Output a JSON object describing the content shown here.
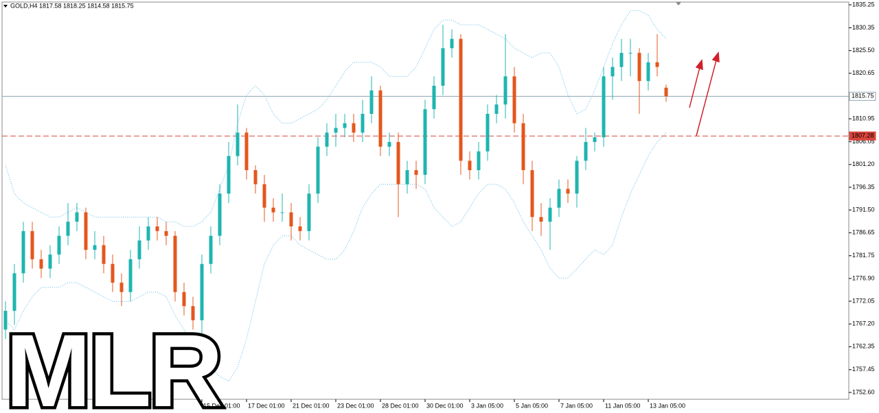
{
  "chart_data": {
    "type": "candlestick",
    "header": "GOLD,H4  1817.58 1818.25 1814.58 1815.75",
    "watermark": "MLR",
    "categories": [
      null,
      null,
      null,
      null,
      null,
      null,
      null,
      null,
      null,
      null,
      null,
      null,
      null,
      null,
      null,
      null,
      null,
      null,
      null,
      null,
      null,
      null,
      "15 Dec 01:00",
      null,
      null,
      null,
      null,
      "17 Dec 01:00",
      null,
      null,
      null,
      null,
      "21 Dec 01:00",
      null,
      null,
      null,
      null,
      "23 Dec 01:00",
      null,
      null,
      null,
      null,
      "28 Dec 01:00",
      null,
      null,
      null,
      null,
      "30 Dec 01:00",
      null,
      null,
      null,
      null,
      "3 Jan 05:00",
      null,
      null,
      null,
      null,
      "5 Jan 05:00",
      null,
      null,
      null,
      null,
      "7 Jan 05:00",
      null,
      null,
      null,
      null,
      "11 Jan 05:00",
      null,
      null,
      null,
      null,
      "13 Jan 05:00",
      null,
      null
    ],
    "open": [
      1766,
      1770,
      1778,
      1787,
      1781,
      1779,
      1782,
      1786,
      1789,
      1791,
      1783,
      1784,
      1780,
      1776,
      1774,
      1781,
      1785,
      1788,
      1787,
      1786,
      1774,
      1771,
      1768,
      1780,
      1786,
      1795,
      1803,
      1808,
      1800,
      1797,
      1792,
      1791,
      1791,
      1788,
      1787,
      1795,
      1805,
      1808,
      1809,
      1810,
      1808,
      1812,
      1817,
      1805,
      1806,
      1797,
      1800,
      1799,
      1813,
      1818,
      1826,
      1828,
      1802,
      1800,
      1804,
      1812,
      1814,
      1820,
      1810,
      1800,
      1790,
      1789,
      1792,
      1796,
      1795,
      1802,
      1806,
      1807,
      1820,
      1822,
      1825,
      1825,
      1819,
      1823,
      1817.58
    ],
    "high": [
      1772,
      1780,
      1789,
      1789,
      1783,
      1784,
      1788,
      1793,
      1793,
      1792,
      1787,
      1786,
      1782,
      1778,
      1783,
      1788,
      1790,
      1790,
      1789,
      1787,
      1776,
      1773,
      1782,
      1788,
      1797,
      1806,
      1814,
      1809,
      1801,
      1799,
      1794,
      1795,
      1793,
      1790,
      1797,
      1807,
      1810,
      1812,
      1812,
      1812,
      1815,
      1820,
      1818,
      1808,
      1808,
      1802,
      1802,
      1815,
      1820,
      1831,
      1830,
      1829,
      1804,
      1806,
      1814,
      1816,
      1829,
      1822,
      1812,
      1802,
      1793,
      1794,
      1798,
      1798,
      1803,
      1809,
      1808,
      1822,
      1824,
      1828,
      1828,
      1826,
      1825,
      1829,
      1818.25
    ],
    "low": [
      1764,
      1767,
      1776,
      1779,
      1777,
      1777,
      1780,
      1784,
      1787,
      1781,
      1781,
      1778,
      1774,
      1771,
      1772,
      1779,
      1783,
      1785,
      1784,
      1772,
      1769,
      1766,
      1753,
      1778,
      1784,
      1793,
      1801,
      1798,
      1795,
      1789,
      1789,
      1789,
      1785,
      1785,
      1785,
      1793,
      1803,
      1805,
      1807,
      1806,
      1806,
      1810,
      1803,
      1803,
      1790,
      1795,
      1796,
      1797,
      1811,
      1816,
      1824,
      1799,
      1798,
      1798,
      1802,
      1810,
      1811,
      1808,
      1797,
      1787,
      1786,
      1783,
      1790,
      1793,
      1792,
      1800,
      1804,
      1805,
      1815,
      1819,
      1820,
      1812,
      1817,
      1820,
      1814.58
    ],
    "close": [
      1770,
      1778,
      1787,
      1781,
      1779,
      1782,
      1786,
      1789,
      1791,
      1783,
      1784,
      1780,
      1776,
      1774,
      1781,
      1785,
      1788,
      1787,
      1786,
      1774,
      1771,
      1768,
      1780,
      1786,
      1795,
      1803,
      1808,
      1800,
      1797,
      1792,
      1791,
      1791,
      1788,
      1787,
      1795,
      1805,
      1808,
      1809,
      1810,
      1808,
      1812,
      1817,
      1805,
      1806,
      1797,
      1800,
      1799,
      1813,
      1818,
      1826,
      1828,
      1802,
      1800,
      1804,
      1812,
      1814,
      1820,
      1810,
      1800,
      1790,
      1789,
      1792,
      1796,
      1795,
      1802,
      1806,
      1807,
      1820,
      1822,
      1825,
      1825,
      1819,
      1823,
      1822,
      1815.75
    ],
    "up_color": "#1fb5b0",
    "down_color": "#e4571e",
    "bands": {
      "color": "#58b8e6",
      "upper": [
        1801,
        1795,
        1793,
        1792,
        1791,
        1790,
        1790,
        1791,
        1792,
        1791,
        1790,
        1790,
        1790,
        1790,
        1790,
        1790,
        1790,
        1790,
        1789,
        1789,
        1788,
        1788,
        1789,
        1791,
        1796,
        1801,
        1810,
        1816,
        1818,
        1816,
        1812,
        1810,
        1810,
        1811,
        1812,
        1813,
        1815,
        1818,
        1821,
        1823,
        1823,
        1823,
        1822,
        1820,
        1820,
        1820,
        1822,
        1826,
        1830,
        1832,
        1832,
        1831,
        1831,
        1831,
        1830,
        1829,
        1828,
        1826,
        1825,
        1824,
        1825,
        1825,
        1822,
        1816,
        1812,
        1813,
        1817,
        1822,
        1827,
        1831,
        1834,
        1834,
        1833,
        1830,
        1828
      ],
      "lower": [
        1768,
        1766,
        1770,
        1773,
        1775,
        1775,
        1775,
        1776,
        1776,
        1775,
        1774,
        1773,
        1772,
        1772,
        1772,
        1773,
        1774,
        1774,
        1773,
        1769,
        1766,
        1763,
        1761,
        1758,
        1756,
        1755,
        1758,
        1764,
        1772,
        1780,
        1784,
        1786,
        1786,
        1784,
        1783,
        1782,
        1781,
        1781,
        1783,
        1787,
        1792,
        1795,
        1797,
        1797,
        1797,
        1797,
        1797,
        1796,
        1792,
        1790,
        1788,
        1789,
        1792,
        1795,
        1797,
        1797,
        1796,
        1793,
        1789,
        1786,
        1783,
        1779,
        1777,
        1777,
        1779,
        1781,
        1783,
        1782,
        1784,
        1790,
        1795,
        1799,
        1803,
        1806,
        1808
      ]
    },
    "price_line": {
      "value": 1815.75,
      "color": "#8aa4b4"
    },
    "level_line": {
      "value": 1807.28,
      "color": "#d9443a"
    },
    "ylim": [
      1751.14,
      1835.84
    ],
    "yticks": [
      1835.25,
      1830.35,
      {
        "value": 1825.5,
        "label": "1825.50"
      },
      1820.65,
      1810.95,
      1806.05,
      {
        "value": 1801.2,
        "label": "1801.20"
      },
      1796.35,
      {
        "value": 1791.5,
        "label": "1791.50"
      },
      1786.65,
      1781.75,
      {
        "value": 1776.9,
        "label": "1776.90"
      },
      1772.05,
      {
        "value": 1767.2,
        "label": "1767.20"
      },
      1762.35,
      1757.45,
      {
        "value": 1752.6,
        "label": "1752.60"
      }
    ]
  }
}
